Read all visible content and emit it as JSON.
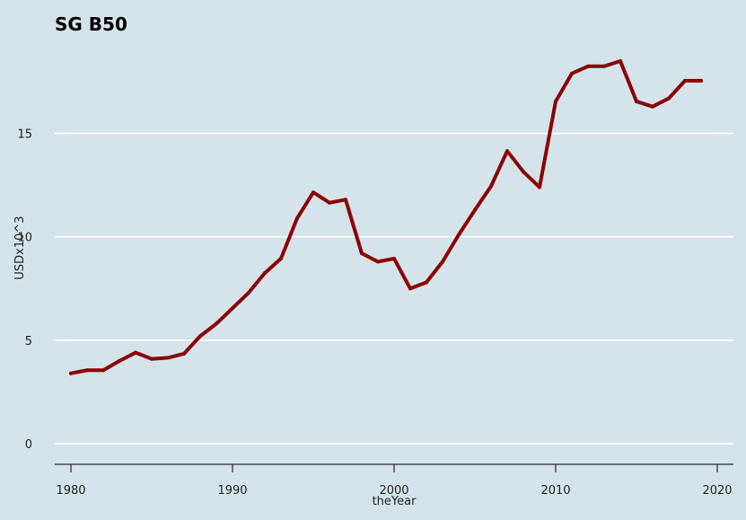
{
  "chart_data": {
    "type": "line",
    "title": "SG B50",
    "xlabel": "theYear",
    "ylabel": "USDx10^3",
    "xlim": [
      1979,
      2021
    ],
    "ylim": [
      -1,
      19.5
    ],
    "xticks": [
      1980,
      1990,
      2000,
      2010,
      2020
    ],
    "yticks": [
      0,
      5,
      10,
      15
    ],
    "grid": true,
    "colors": {
      "background": "#d5e4eb",
      "line": "#8b0000",
      "grid": "#ffffff"
    },
    "series": [
      {
        "name": "SG B50",
        "x": [
          1980,
          1981,
          1982,
          1983,
          1984,
          1985,
          1986,
          1987,
          1988,
          1989,
          1990,
          1991,
          1992,
          1993,
          1994,
          1995,
          1996,
          1997,
          1998,
          1999,
          2000,
          2001,
          2002,
          2003,
          2004,
          2005,
          2006,
          2007,
          2008,
          2009,
          2010,
          2011,
          2012,
          2013,
          2014,
          2015,
          2016,
          2017,
          2018,
          2019
        ],
        "values": [
          3.4,
          3.55,
          3.55,
          4.0,
          4.4,
          4.1,
          4.15,
          4.35,
          5.2,
          5.8,
          6.55,
          7.3,
          8.25,
          8.95,
          10.9,
          12.15,
          11.65,
          11.8,
          9.2,
          8.8,
          8.95,
          7.5,
          7.8,
          8.8,
          10.1,
          11.3,
          12.45,
          14.15,
          13.15,
          12.4,
          16.55,
          17.9,
          18.25,
          18.25,
          18.5,
          16.55,
          16.3,
          16.7,
          17.55,
          17.55
        ]
      }
    ]
  }
}
